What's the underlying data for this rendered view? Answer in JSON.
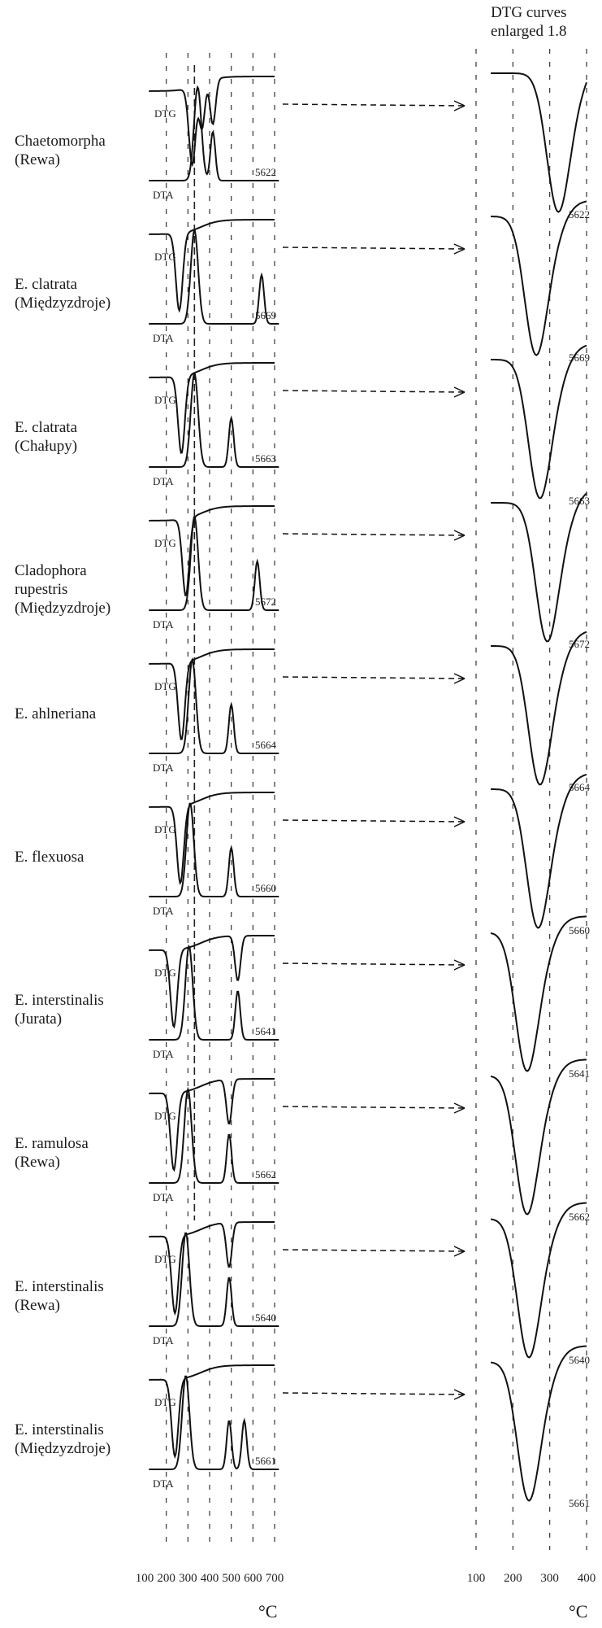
{
  "header": {
    "line1": "DTG curves",
    "line2": "enlarged 1.8"
  },
  "unit": "°C",
  "curve_labels": {
    "dtg": "DTG",
    "dta": "DTA"
  },
  "chart_data": {
    "type": "line",
    "title": "",
    "xlabel": "°C",
    "left_panel": {
      "ticks": [
        100,
        200,
        300,
        400,
        500,
        600,
        700
      ],
      "xlim": [
        100,
        700
      ]
    },
    "right_panel": {
      "ticks": [
        100,
        200,
        300,
        400
      ],
      "xlim": [
        100,
        400
      ],
      "caption": "DTG curves enlarged 1.8"
    },
    "samples": [
      {
        "name": "Chaetomorpha\n(Rewa)",
        "code": "5622",
        "dtg_peaks": [
          320,
          365,
          415
        ],
        "dta_peaks": [
          345,
          415
        ]
      },
      {
        "name": "E. clatrata\n(Międzyzdroje)",
        "code": "5669",
        "dtg_peaks": [
          260
        ],
        "dta_peaks": [
          330,
          640
        ]
      },
      {
        "name": "E. clatrata\n(Chałupy)",
        "code": "5663",
        "dtg_peaks": [
          270
        ],
        "dta_peaks": [
          330,
          500
        ]
      },
      {
        "name": "Cladophora\nrupestris\n(Międzyzdroje)",
        "code": "5672",
        "dtg_peaks": [
          290
        ],
        "dta_peaks": [
          330,
          620
        ]
      },
      {
        "name": "E. ahlneriana",
        "code": "5664",
        "dtg_peaks": [
          270
        ],
        "dta_peaks": [
          320,
          500
        ]
      },
      {
        "name": "E. flexuosa",
        "code": "5660",
        "dtg_peaks": [
          265
        ],
        "dta_peaks": [
          310,
          500
        ]
      },
      {
        "name": "E. interstinalis\n(Jurata)",
        "code": "5641",
        "dtg_peaks": [
          235,
          530
        ],
        "dta_peaks": [
          305,
          530
        ]
      },
      {
        "name": "E. ramulosa\n(Rewa)",
        "code": "5662",
        "dtg_peaks": [
          235,
          490
        ],
        "dta_peaks": [
          300,
          490
        ]
      },
      {
        "name": "E. interstinalis\n(Rewa)",
        "code": "5640",
        "dtg_peaks": [
          240,
          490
        ],
        "dta_peaks": [
          290,
          490
        ]
      },
      {
        "name": "E. interstinalis\n(Międzyzdroje)",
        "code": "5661",
        "dtg_peaks": [
          240
        ],
        "dta_peaks": [
          290,
          490,
          560
        ]
      }
    ]
  }
}
